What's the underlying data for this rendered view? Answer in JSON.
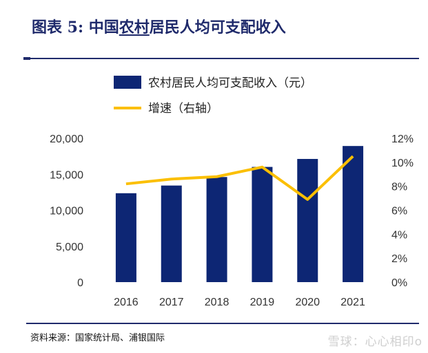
{
  "header": {
    "prefix": "图表 5: 中国",
    "underlined": "农村",
    "suffix": "居民人均可支配收入"
  },
  "source": "资料来源：国家统计局、浦银国际",
  "watermark": "雪球：心心相印o",
  "colors": {
    "bar": "#0d2674",
    "line": "#fbbf00",
    "accent": "#1f2a6b"
  },
  "chart_data": {
    "type": "bar",
    "categories": [
      "2016",
      "2017",
      "2018",
      "2019",
      "2020",
      "2021"
    ],
    "series": [
      {
        "name": "农村居民人均可支配收入（元）",
        "type": "bar",
        "axis": "left",
        "values": [
          12363,
          13432,
          14617,
          16021,
          17131,
          18931
        ]
      },
      {
        "name": "增速（右轴）",
        "type": "line",
        "axis": "right",
        "values": [
          8.2,
          8.6,
          8.8,
          9.6,
          6.9,
          10.5
        ]
      }
    ],
    "y_left": {
      "ylim": [
        0,
        20000
      ],
      "ticks": [
        "0",
        "5,000",
        "10,000",
        "15,000",
        "20,000"
      ]
    },
    "y_right": {
      "ylim": [
        0,
        12
      ],
      "ticks": [
        "0%",
        "2%",
        "4%",
        "6%",
        "8%",
        "10%",
        "12%"
      ]
    },
    "legend_position": "top",
    "grid": false
  }
}
